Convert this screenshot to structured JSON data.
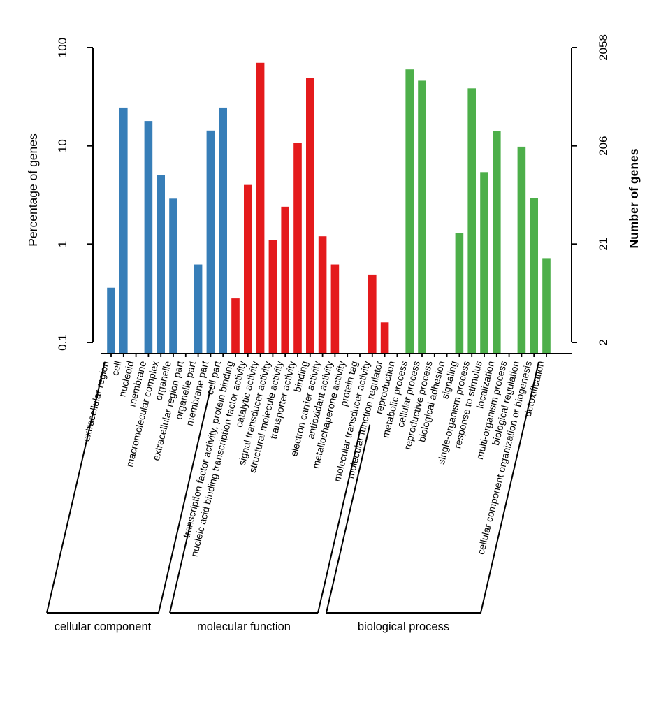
{
  "chart_data": {
    "type": "bar",
    "title": "",
    "ylabel_left": "Percentage of genes",
    "ylabel_right": "Number of genes",
    "y_scale": "log",
    "ylim_percent": [
      0.1,
      100
    ],
    "left_axis_ticks_percent": [
      "100",
      "10",
      "1",
      "0.1"
    ],
    "right_axis_ticks_genes": [
      "2058",
      "206",
      "21",
      "2"
    ],
    "total_genes": 2058,
    "grid": false,
    "legend_position": "none",
    "groups": [
      {
        "name": "cellular component",
        "color": "#377EB8",
        "categories": [
          "extracellular region",
          "cell",
          "nucleoid",
          "membrane",
          "macromolecular complex",
          "organelle",
          "extracellular region part",
          "organelle part",
          "membrane part",
          "cell part"
        ],
        "values_percent": [
          0.36,
          24.5,
          null,
          17.9,
          5.0,
          2.9,
          null,
          0.62,
          14.3,
          24.5
        ]
      },
      {
        "name": "molecular function",
        "color": "#E41A1C",
        "categories": [
          "transcription factor activity, protein binding",
          "nucleic acid binding transcription factor activity",
          "catalytic activity",
          "signal transducer activity",
          "structural molecule activity",
          "transporter activity",
          "binding",
          "electron carrier activity",
          "antioxidant activity",
          "metallochaperone activity",
          "protein tag",
          "molecular transducer activity",
          "molecular function regulator"
        ],
        "values_percent": [
          0.28,
          4.0,
          70.0,
          1.1,
          2.4,
          10.7,
          49.0,
          1.2,
          0.62,
          null,
          null,
          0.49,
          0.16
        ]
      },
      {
        "name": "biological process",
        "color": "#4DAF4A",
        "categories": [
          "reproduction",
          "metabolic process",
          "cellular process",
          "reproductive process",
          "biological adhesion",
          "signaling",
          "single-organism process",
          "response to stimulus",
          "localization",
          "multi-organism process",
          "biological regulation",
          "cellular component organization or biogenesis",
          "detoxification"
        ],
        "values_percent": [
          null,
          60.0,
          46.0,
          null,
          null,
          1.3,
          38.5,
          5.4,
          14.2,
          null,
          9.8,
          2.95,
          0.72
        ]
      }
    ]
  }
}
